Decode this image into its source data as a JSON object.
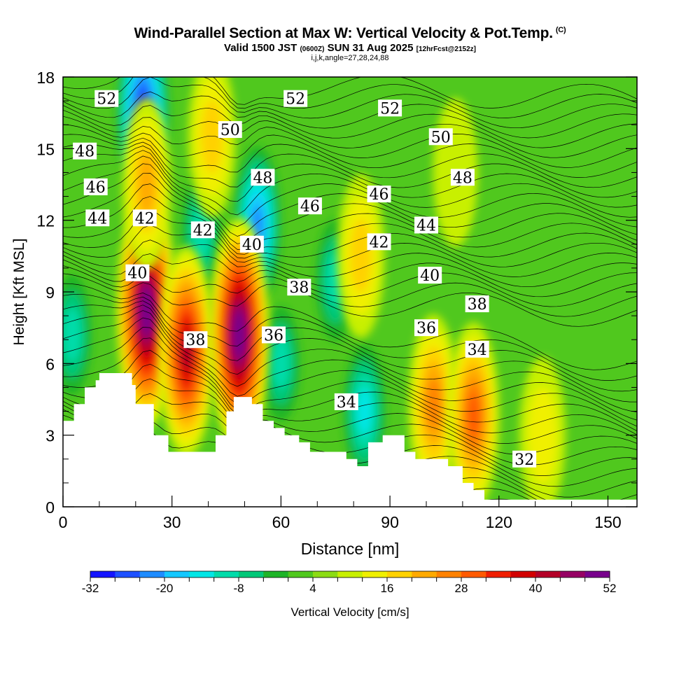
{
  "titles": {
    "main": "Wind-Parallel Section at Max W: Vertical Velocity & Pot.Temp.",
    "copyright": "(C)",
    "subtitle_a": "Valid 1500 JST",
    "subtitle_b": "(0600Z)",
    "subtitle_c": "SUN 31 Aug 2025",
    "subtitle_d": "[12hrFcst@2152z]",
    "indices": "i,j,k,angle=27,28,24,88"
  },
  "colorbar": {
    "label": "Vertical Velocity [cm/s]",
    "tick_labels": [
      "-32",
      "-20",
      "-8",
      "4",
      "16",
      "28",
      "40",
      "52"
    ],
    "colors": [
      "#1414ff",
      "#1e50ff",
      "#1e8cff",
      "#14c8ff",
      "#00e6e6",
      "#00dcaa",
      "#00c878",
      "#1eb428",
      "#50c81e",
      "#8cdc14",
      "#c8f000",
      "#f0f000",
      "#ffd200",
      "#ffaa00",
      "#ff8200",
      "#ff5a00",
      "#f01e00",
      "#d20000",
      "#b40028",
      "#960064",
      "#78008c"
    ]
  },
  "chart_data": {
    "type": "heatmap",
    "title": "Wind-Parallel Section at Max W: Vertical Velocity & Pot.Temp.",
    "xlabel": "Distance [nm]",
    "ylabel": "Height [Kft MSL]",
    "xlim": [
      0,
      158
    ],
    "ylim": [
      0,
      18
    ],
    "x_ticks": [
      0,
      30,
      60,
      90,
      120,
      150
    ],
    "y_ticks": [
      0,
      3,
      6,
      9,
      12,
      15,
      18
    ],
    "color_variable": "Vertical Velocity [cm/s]",
    "color_range": [
      -32,
      52
    ],
    "color_step": 4,
    "contour_variable": "Potential Temperature",
    "terrain_profile": [
      [
        0,
        3.6
      ],
      [
        3,
        3.6
      ],
      [
        3,
        4.3
      ],
      [
        6,
        4.3
      ],
      [
        6,
        5.0
      ],
      [
        9,
        5.0
      ],
      [
        9,
        5.3
      ],
      [
        10,
        5.3
      ],
      [
        10,
        5.6
      ],
      [
        19,
        5.6
      ],
      [
        19,
        5.1
      ],
      [
        20,
        5.1
      ],
      [
        20,
        4.3
      ],
      [
        25,
        4.3
      ],
      [
        25,
        3.0
      ],
      [
        29,
        3.0
      ],
      [
        29,
        2.3
      ],
      [
        42,
        2.3
      ],
      [
        42,
        3.0
      ],
      [
        45,
        3.0
      ],
      [
        45,
        4.0
      ],
      [
        47,
        4.0
      ],
      [
        47,
        4.6
      ],
      [
        52,
        4.6
      ],
      [
        52,
        4.3
      ],
      [
        55,
        4.3
      ],
      [
        55,
        3.6
      ],
      [
        58,
        3.6
      ],
      [
        58,
        3.3
      ],
      [
        61,
        3.3
      ],
      [
        61,
        3.0
      ],
      [
        65,
        3.0
      ],
      [
        65,
        2.7
      ],
      [
        68,
        2.7
      ],
      [
        68,
        2.3
      ],
      [
        78,
        2.3
      ],
      [
        78,
        2.0
      ],
      [
        81,
        2.0
      ],
      [
        81,
        1.7
      ],
      [
        84,
        1.7
      ],
      [
        84,
        2.7
      ],
      [
        88,
        2.7
      ],
      [
        88,
        3.0
      ],
      [
        94,
        3.0
      ],
      [
        94,
        2.3
      ],
      [
        97,
        2.3
      ],
      [
        97,
        2.0
      ],
      [
        106,
        2.0
      ],
      [
        106,
        1.7
      ],
      [
        110,
        1.7
      ],
      [
        110,
        1.0
      ],
      [
        113,
        1.0
      ],
      [
        113,
        0.7
      ],
      [
        116,
        0.7
      ],
      [
        116,
        0.3
      ],
      [
        158,
        0.3
      ]
    ],
    "updrafts": [
      {
        "x": 23,
        "z": 8.2,
        "w": 52
      },
      {
        "x": 34,
        "z": 6.5,
        "w": 40
      },
      {
        "x": 48.5,
        "z": 7.2,
        "w": 52
      },
      {
        "x": 23,
        "z": 13.5,
        "w": 20
      },
      {
        "x": 41,
        "z": 15.5,
        "w": 16
      },
      {
        "x": 82,
        "z": 10.5,
        "w": 16
      },
      {
        "x": 102,
        "z": 4.3,
        "w": 24
      },
      {
        "x": 113,
        "z": 3.8,
        "w": 28
      },
      {
        "x": 132,
        "z": 3.0,
        "w": 12
      },
      {
        "x": 108,
        "z": 14,
        "w": 8
      }
    ],
    "downdrafts": [
      {
        "x": 22,
        "z": 16.5,
        "w": -32
      },
      {
        "x": 53.5,
        "z": 11.8,
        "w": -24
      },
      {
        "x": 75,
        "z": 9.5,
        "w": -12
      },
      {
        "x": 2.5,
        "z": 7.2,
        "w": -12
      },
      {
        "x": 60,
        "z": 6.0,
        "w": -10
      },
      {
        "x": 83,
        "z": 4.0,
        "w": -16
      },
      {
        "x": 38,
        "z": 11.5,
        "w": -12
      }
    ],
    "theta_labels": [
      {
        "text": "52",
        "x": 12,
        "z": 17.1
      },
      {
        "text": "52",
        "x": 64,
        "z": 17.1
      },
      {
        "text": "52",
        "x": 90,
        "z": 16.7
      },
      {
        "text": "50",
        "x": 46,
        "z": 15.8
      },
      {
        "text": "50",
        "x": 104,
        "z": 15.5
      },
      {
        "text": "48",
        "x": 6,
        "z": 14.9
      },
      {
        "text": "48",
        "x": 55,
        "z": 13.8
      },
      {
        "text": "48",
        "x": 110,
        "z": 13.8
      },
      {
        "text": "46",
        "x": 9,
        "z": 13.4
      },
      {
        "text": "46",
        "x": 68,
        "z": 12.6
      },
      {
        "text": "46",
        "x": 87,
        "z": 13.1
      },
      {
        "text": "44",
        "x": 9.5,
        "z": 12.1
      },
      {
        "text": "44",
        "x": 100,
        "z": 11.8
      },
      {
        "text": "42",
        "x": 22.5,
        "z": 12.1
      },
      {
        "text": "42",
        "x": 38.5,
        "z": 11.6
      },
      {
        "text": "42",
        "x": 87,
        "z": 11.1
      },
      {
        "text": "40",
        "x": 20.5,
        "z": 9.8
      },
      {
        "text": "40",
        "x": 52,
        "z": 11.0
      },
      {
        "text": "40",
        "x": 101,
        "z": 9.7
      },
      {
        "text": "38",
        "x": 36.5,
        "z": 7.0
      },
      {
        "text": "38",
        "x": 65,
        "z": 9.2
      },
      {
        "text": "38",
        "x": 114,
        "z": 8.5
      },
      {
        "text": "36",
        "x": 58,
        "z": 7.2
      },
      {
        "text": "36",
        "x": 100,
        "z": 7.5
      },
      {
        "text": "34",
        "x": 78,
        "z": 4.4
      },
      {
        "text": "34",
        "x": 114,
        "z": 6.6
      },
      {
        "text": "32",
        "x": 127,
        "z": 2.0
      }
    ]
  }
}
